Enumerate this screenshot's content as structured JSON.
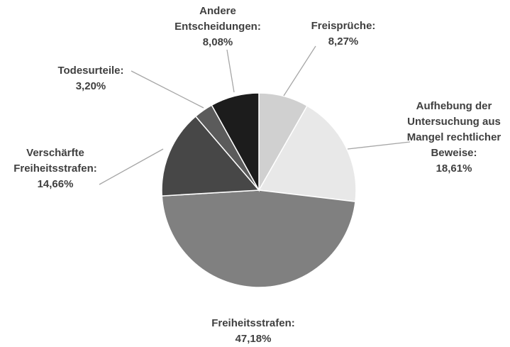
{
  "chart_data": {
    "type": "pie",
    "categories": [
      "Freisprüche:",
      "Aufhebung der Untersuchung aus Mangel rechtlicher Beweise:",
      "Freiheitsstrafen:",
      "Verschärfte Freiheitsstrafen:",
      "Todesurteile:",
      "Andere Entscheidungen:"
    ],
    "values": [
      8.27,
      18.61,
      47.18,
      14.66,
      3.2,
      8.08
    ],
    "value_labels": [
      "8,27%",
      "18,61%",
      "47,18%",
      "14,66%",
      "3,20%",
      "8,08%"
    ],
    "colors": [
      "#d0d0d0",
      "#e8e8e8",
      "#808080",
      "#474747",
      "#5b5b5b",
      "#1c1c1c"
    ]
  }
}
